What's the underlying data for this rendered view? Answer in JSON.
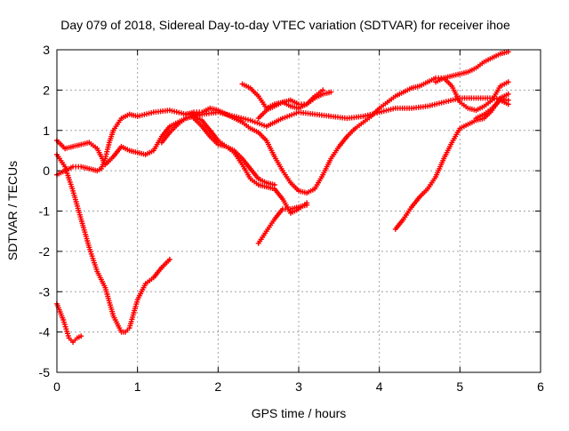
{
  "chart_data": {
    "type": "scatter",
    "title": "Day 079 of 2018, Sidereal Day-to-day VTEC variation (SDTVAR) for receiver ihoe",
    "xlabel": "GPS time / hours",
    "ylabel": "SDTVAR / TECUs",
    "xlim": [
      0,
      6
    ],
    "ylim": [
      -5,
      3
    ],
    "xticks": [
      "0",
      "1",
      "2",
      "3",
      "4",
      "5",
      "6"
    ],
    "yticks": [
      "-5",
      "-4",
      "-3",
      "-2",
      "-1",
      "0",
      "1",
      "2",
      "3"
    ],
    "grid": true,
    "marker": "+",
    "color": "#ff0000",
    "series": [
      {
        "x": [
          0.0,
          0.08,
          0.15,
          0.2,
          0.25,
          0.3
        ],
        "y": [
          -3.3,
          -3.7,
          -4.15,
          -4.25,
          -4.15,
          -4.1
        ]
      },
      {
        "x": [
          0.0,
          0.1,
          0.2,
          0.3,
          0.4,
          0.5,
          0.6,
          0.7,
          0.8,
          0.85,
          0.9,
          1.0,
          1.1,
          1.2,
          1.3,
          1.4
        ],
        "y": [
          0.4,
          0.1,
          -0.5,
          -1.2,
          -1.9,
          -2.5,
          -2.9,
          -3.6,
          -4.0,
          -4.0,
          -3.9,
          -3.2,
          -2.8,
          -2.65,
          -2.4,
          -2.2
        ]
      },
      {
        "x": [
          0.0,
          0.1,
          0.2,
          0.3,
          0.4,
          0.5,
          0.6,
          0.7,
          0.8,
          0.9,
          1.0,
          1.1,
          1.2,
          1.3,
          1.4,
          1.5,
          1.6,
          1.7,
          1.8
        ],
        "y": [
          0.75,
          0.55,
          0.6,
          0.65,
          0.7,
          0.55,
          0.15,
          0.35,
          0.6,
          0.5,
          0.45,
          0.4,
          0.5,
          0.85,
          1.1,
          1.2,
          1.3,
          1.35,
          1.4
        ]
      },
      {
        "x": [
          0.0,
          0.1,
          0.2,
          0.3,
          0.4,
          0.5,
          0.55,
          0.6,
          0.65,
          0.7,
          0.8,
          0.9,
          1.0,
          1.2,
          1.4,
          1.6,
          1.8,
          2.0,
          2.2,
          2.4,
          2.6,
          2.8,
          3.0,
          3.2,
          3.4,
          3.6,
          3.8,
          4.0,
          4.2,
          4.4,
          4.6,
          4.8,
          5.0,
          5.2,
          5.4,
          5.6
        ],
        "y": [
          -0.1,
          0.0,
          0.1,
          0.1,
          0.05,
          0.0,
          0.05,
          0.3,
          0.7,
          1.0,
          1.3,
          1.4,
          1.35,
          1.45,
          1.5,
          1.4,
          1.4,
          1.45,
          1.35,
          1.25,
          1.1,
          1.3,
          1.45,
          1.4,
          1.35,
          1.3,
          1.35,
          1.45,
          1.55,
          1.55,
          1.6,
          1.7,
          1.8,
          1.8,
          1.8,
          1.75
        ]
      },
      {
        "x": [
          1.6,
          1.7,
          1.8,
          1.9,
          2.0,
          2.1,
          2.2,
          2.3,
          2.4,
          2.5,
          2.6,
          2.7,
          2.8,
          2.9,
          3.0,
          3.1,
          3.2,
          3.3,
          3.4,
          3.5,
          3.6,
          3.7,
          3.8,
          3.9,
          4.0,
          4.1,
          4.2,
          4.3,
          4.4,
          4.5,
          4.6,
          4.7,
          4.8,
          4.9,
          5.0,
          5.1,
          5.2,
          5.3,
          5.4,
          5.5,
          5.6
        ],
        "y": [
          1.4,
          1.45,
          1.45,
          1.55,
          1.5,
          1.4,
          1.3,
          1.2,
          1.05,
          0.95,
          0.75,
          0.35,
          0.0,
          -0.3,
          -0.5,
          -0.55,
          -0.45,
          -0.1,
          0.3,
          0.6,
          0.85,
          1.05,
          1.2,
          1.35,
          1.55,
          1.7,
          1.85,
          1.95,
          2.05,
          2.1,
          2.2,
          2.3,
          2.3,
          2.35,
          2.4,
          2.45,
          2.55,
          2.7,
          2.8,
          2.9,
          2.95
        ]
      },
      {
        "x": [
          1.3,
          1.4,
          1.5,
          1.6,
          1.7,
          1.8,
          1.9,
          2.0,
          2.1,
          2.2,
          2.3,
          2.4,
          2.5,
          2.6,
          2.7,
          2.8,
          2.9,
          3.0,
          3.1
        ],
        "y": [
          0.7,
          0.95,
          1.15,
          1.3,
          1.35,
          1.25,
          1.0,
          0.75,
          0.6,
          0.45,
          0.15,
          -0.2,
          -0.35,
          -0.4,
          -0.45,
          -0.7,
          -1.05,
          -0.95,
          -0.8
        ]
      },
      {
        "x": [
          1.7,
          1.8,
          1.9,
          2.0,
          2.1,
          2.2,
          2.3,
          2.4,
          2.5,
          2.6,
          2.7
        ],
        "y": [
          1.3,
          1.1,
          0.85,
          0.65,
          0.6,
          0.5,
          0.3,
          0.05,
          -0.2,
          -0.3,
          -0.35
        ]
      },
      {
        "x": [
          2.5,
          2.6,
          2.7,
          2.8,
          2.9,
          3.0,
          3.1
        ],
        "y": [
          -1.8,
          -1.5,
          -1.2,
          -0.95,
          -0.95,
          -0.9,
          -0.85
        ]
      },
      {
        "x": [
          2.3,
          2.4,
          2.5,
          2.6,
          2.7,
          2.8,
          2.9,
          3.0,
          3.1,
          3.2,
          3.3,
          3.4
        ],
        "y": [
          2.15,
          2.05,
          1.85,
          1.55,
          1.65,
          1.7,
          1.6,
          1.55,
          1.65,
          1.8,
          1.9,
          1.95
        ]
      },
      {
        "x": [
          2.5,
          2.6,
          2.7,
          2.8,
          2.9,
          3.0,
          3.1,
          3.2,
          3.3
        ],
        "y": [
          1.3,
          1.5,
          1.6,
          1.7,
          1.75,
          1.65,
          1.65,
          1.85,
          2.0
        ]
      },
      {
        "x": [
          4.2,
          4.3,
          4.4,
          4.5,
          4.6,
          4.7,
          4.8,
          4.9,
          5.0,
          5.1,
          5.2,
          5.3,
          5.4,
          5.5,
          5.6
        ],
        "y": [
          -1.45,
          -1.2,
          -0.9,
          -0.65,
          -0.45,
          -0.15,
          0.3,
          0.7,
          1.05,
          1.15,
          1.25,
          1.3,
          1.5,
          1.8,
          1.9
        ]
      },
      {
        "x": [
          4.7,
          4.8,
          4.9,
          5.0,
          5.1,
          5.2,
          5.3,
          5.4,
          5.5,
          5.6
        ],
        "y": [
          2.2,
          2.3,
          2.1,
          1.7,
          1.55,
          1.5,
          1.6,
          1.75,
          2.1,
          2.2
        ]
      },
      {
        "x": [
          5.2,
          5.3,
          5.4,
          5.5,
          5.6
        ],
        "y": [
          1.3,
          1.4,
          1.55,
          1.75,
          1.65
        ]
      }
    ]
  }
}
